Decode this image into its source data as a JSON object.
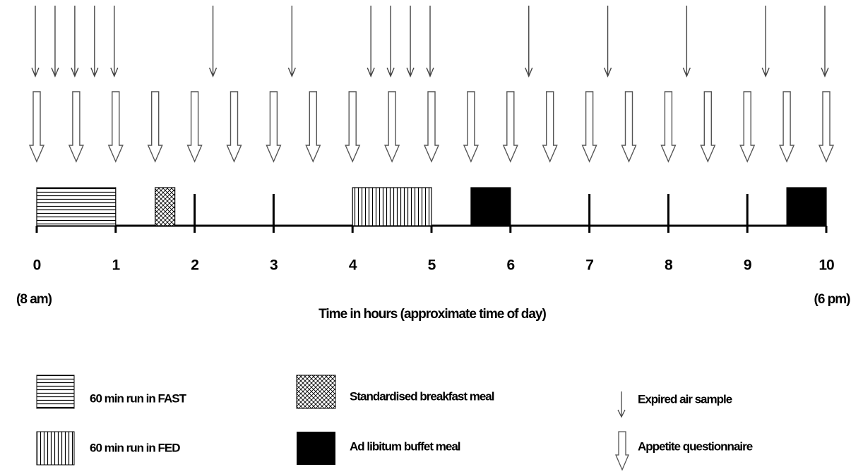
{
  "timeline": {
    "ticks": [
      0,
      1,
      2,
      3,
      4,
      5,
      6,
      7,
      8,
      9,
      10
    ],
    "start_label": "(8 am)",
    "end_label": "(6 pm)",
    "axis_title": "Time in hours (approximate time of day)",
    "expired_air_times": [
      0,
      0.25,
      0.5,
      0.75,
      1,
      2.25,
      3.25,
      4.25,
      4.5,
      4.75,
      5,
      6.25,
      7.25,
      8.25,
      9.25,
      10
    ],
    "questionnaire_times": [
      0,
      0.5,
      1,
      1.5,
      2,
      2.5,
      3,
      3.5,
      4,
      4.5,
      5,
      5.5,
      6,
      6.5,
      7,
      7.5,
      8,
      8.5,
      9,
      9.5,
      10
    ],
    "fast_run": [
      0,
      1
    ],
    "breakfast": [
      1.5,
      1.75
    ],
    "fed_run": [
      4,
      5
    ],
    "buffet_meals": [
      [
        5.5,
        6
      ],
      [
        9.5,
        10
      ]
    ],
    "hour_markers": [
      2,
      3,
      7,
      8,
      9
    ]
  },
  "legend": [
    {
      "label": "60 min run in FAST"
    },
    {
      "label": "60 min run in FED"
    },
    {
      "label": "Standardised breakfast meal"
    },
    {
      "label": "Ad libitum buffet meal"
    },
    {
      "label": "Expired air sample"
    },
    {
      "label": "Appetite questionnaire"
    }
  ]
}
